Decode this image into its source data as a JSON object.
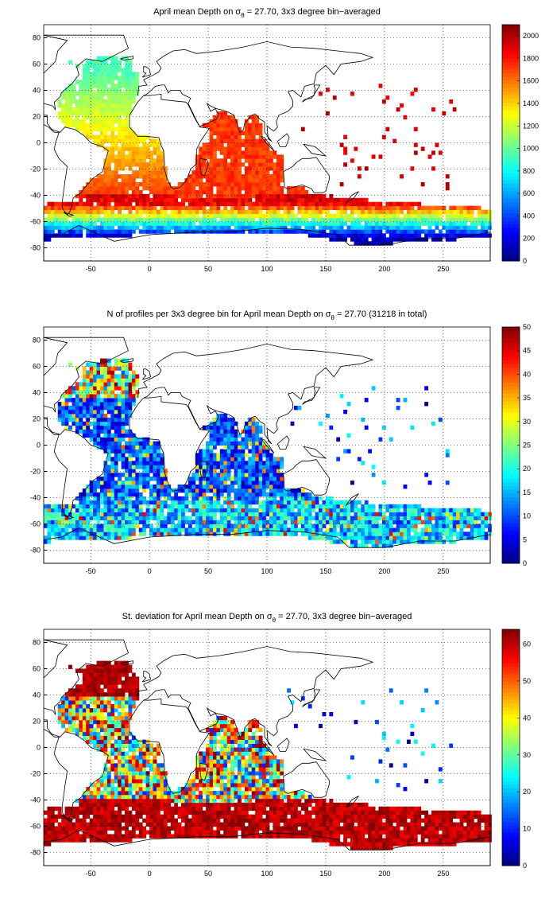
{
  "chart_data": [
    {
      "type": "heatmap",
      "title_parts": [
        "April mean Depth on ",
        "σ",
        "θ",
        " = 27.70, 3x3 degree bin−averaged"
      ],
      "xlabel": "",
      "ylabel": "",
      "xlim": [
        -90,
        290
      ],
      "ylim": [
        -90,
        90
      ],
      "x_ticks": [
        "-50",
        "0",
        "50",
        "100",
        "150",
        "200",
        "250"
      ],
      "y_ticks": [
        "80",
        "60",
        "40",
        "20",
        "0",
        "-20",
        "-40",
        "-60",
        "-80"
      ],
      "colorbar": {
        "min": 0,
        "max": 2100,
        "ticks": [
          "0",
          "200",
          "400",
          "600",
          "800",
          "1000",
          "1200",
          "1400",
          "1600",
          "1800",
          "2000"
        ],
        "colormap": "jet"
      },
      "grid": true
    },
    {
      "type": "heatmap",
      "title_parts": [
        "N of profiles per 3x3 degree bin for April mean Depth on ",
        "σ",
        "θ",
        " = 27.70 (31218 in total)"
      ],
      "xlabel": "",
      "ylabel": "",
      "xlim": [
        -90,
        290
      ],
      "ylim": [
        -90,
        90
      ],
      "x_ticks": [
        "-50",
        "0",
        "50",
        "100",
        "150",
        "200",
        "250"
      ],
      "y_ticks": [
        "80",
        "60",
        "40",
        "20",
        "0",
        "-20",
        "-40",
        "-60",
        "-80"
      ],
      "colorbar": {
        "min": 0,
        "max": 50,
        "ticks": [
          "0",
          "5",
          "10",
          "15",
          "20",
          "25",
          "30",
          "35",
          "40",
          "45",
          "50"
        ],
        "colormap": "jet"
      },
      "grid": true
    },
    {
      "type": "heatmap",
      "title_parts": [
        "St. deviation for April mean Depth on ",
        "σ",
        "θ",
        " = 27.70, 3x3 degree bin−averaged"
      ],
      "xlabel": "",
      "ylabel": "",
      "xlim": [
        -90,
        290
      ],
      "ylim": [
        -90,
        90
      ],
      "x_ticks": [
        "-50",
        "0",
        "50",
        "100",
        "150",
        "200",
        "250"
      ],
      "y_ticks": [
        "80",
        "60",
        "40",
        "20",
        "0",
        "-20",
        "-40",
        "-60",
        "-80"
      ],
      "colorbar": {
        "min": 0,
        "max": 64,
        "ticks": [
          "0",
          "10",
          "20",
          "30",
          "40",
          "50",
          "60"
        ],
        "colormap": "jet"
      },
      "grid": true
    }
  ]
}
